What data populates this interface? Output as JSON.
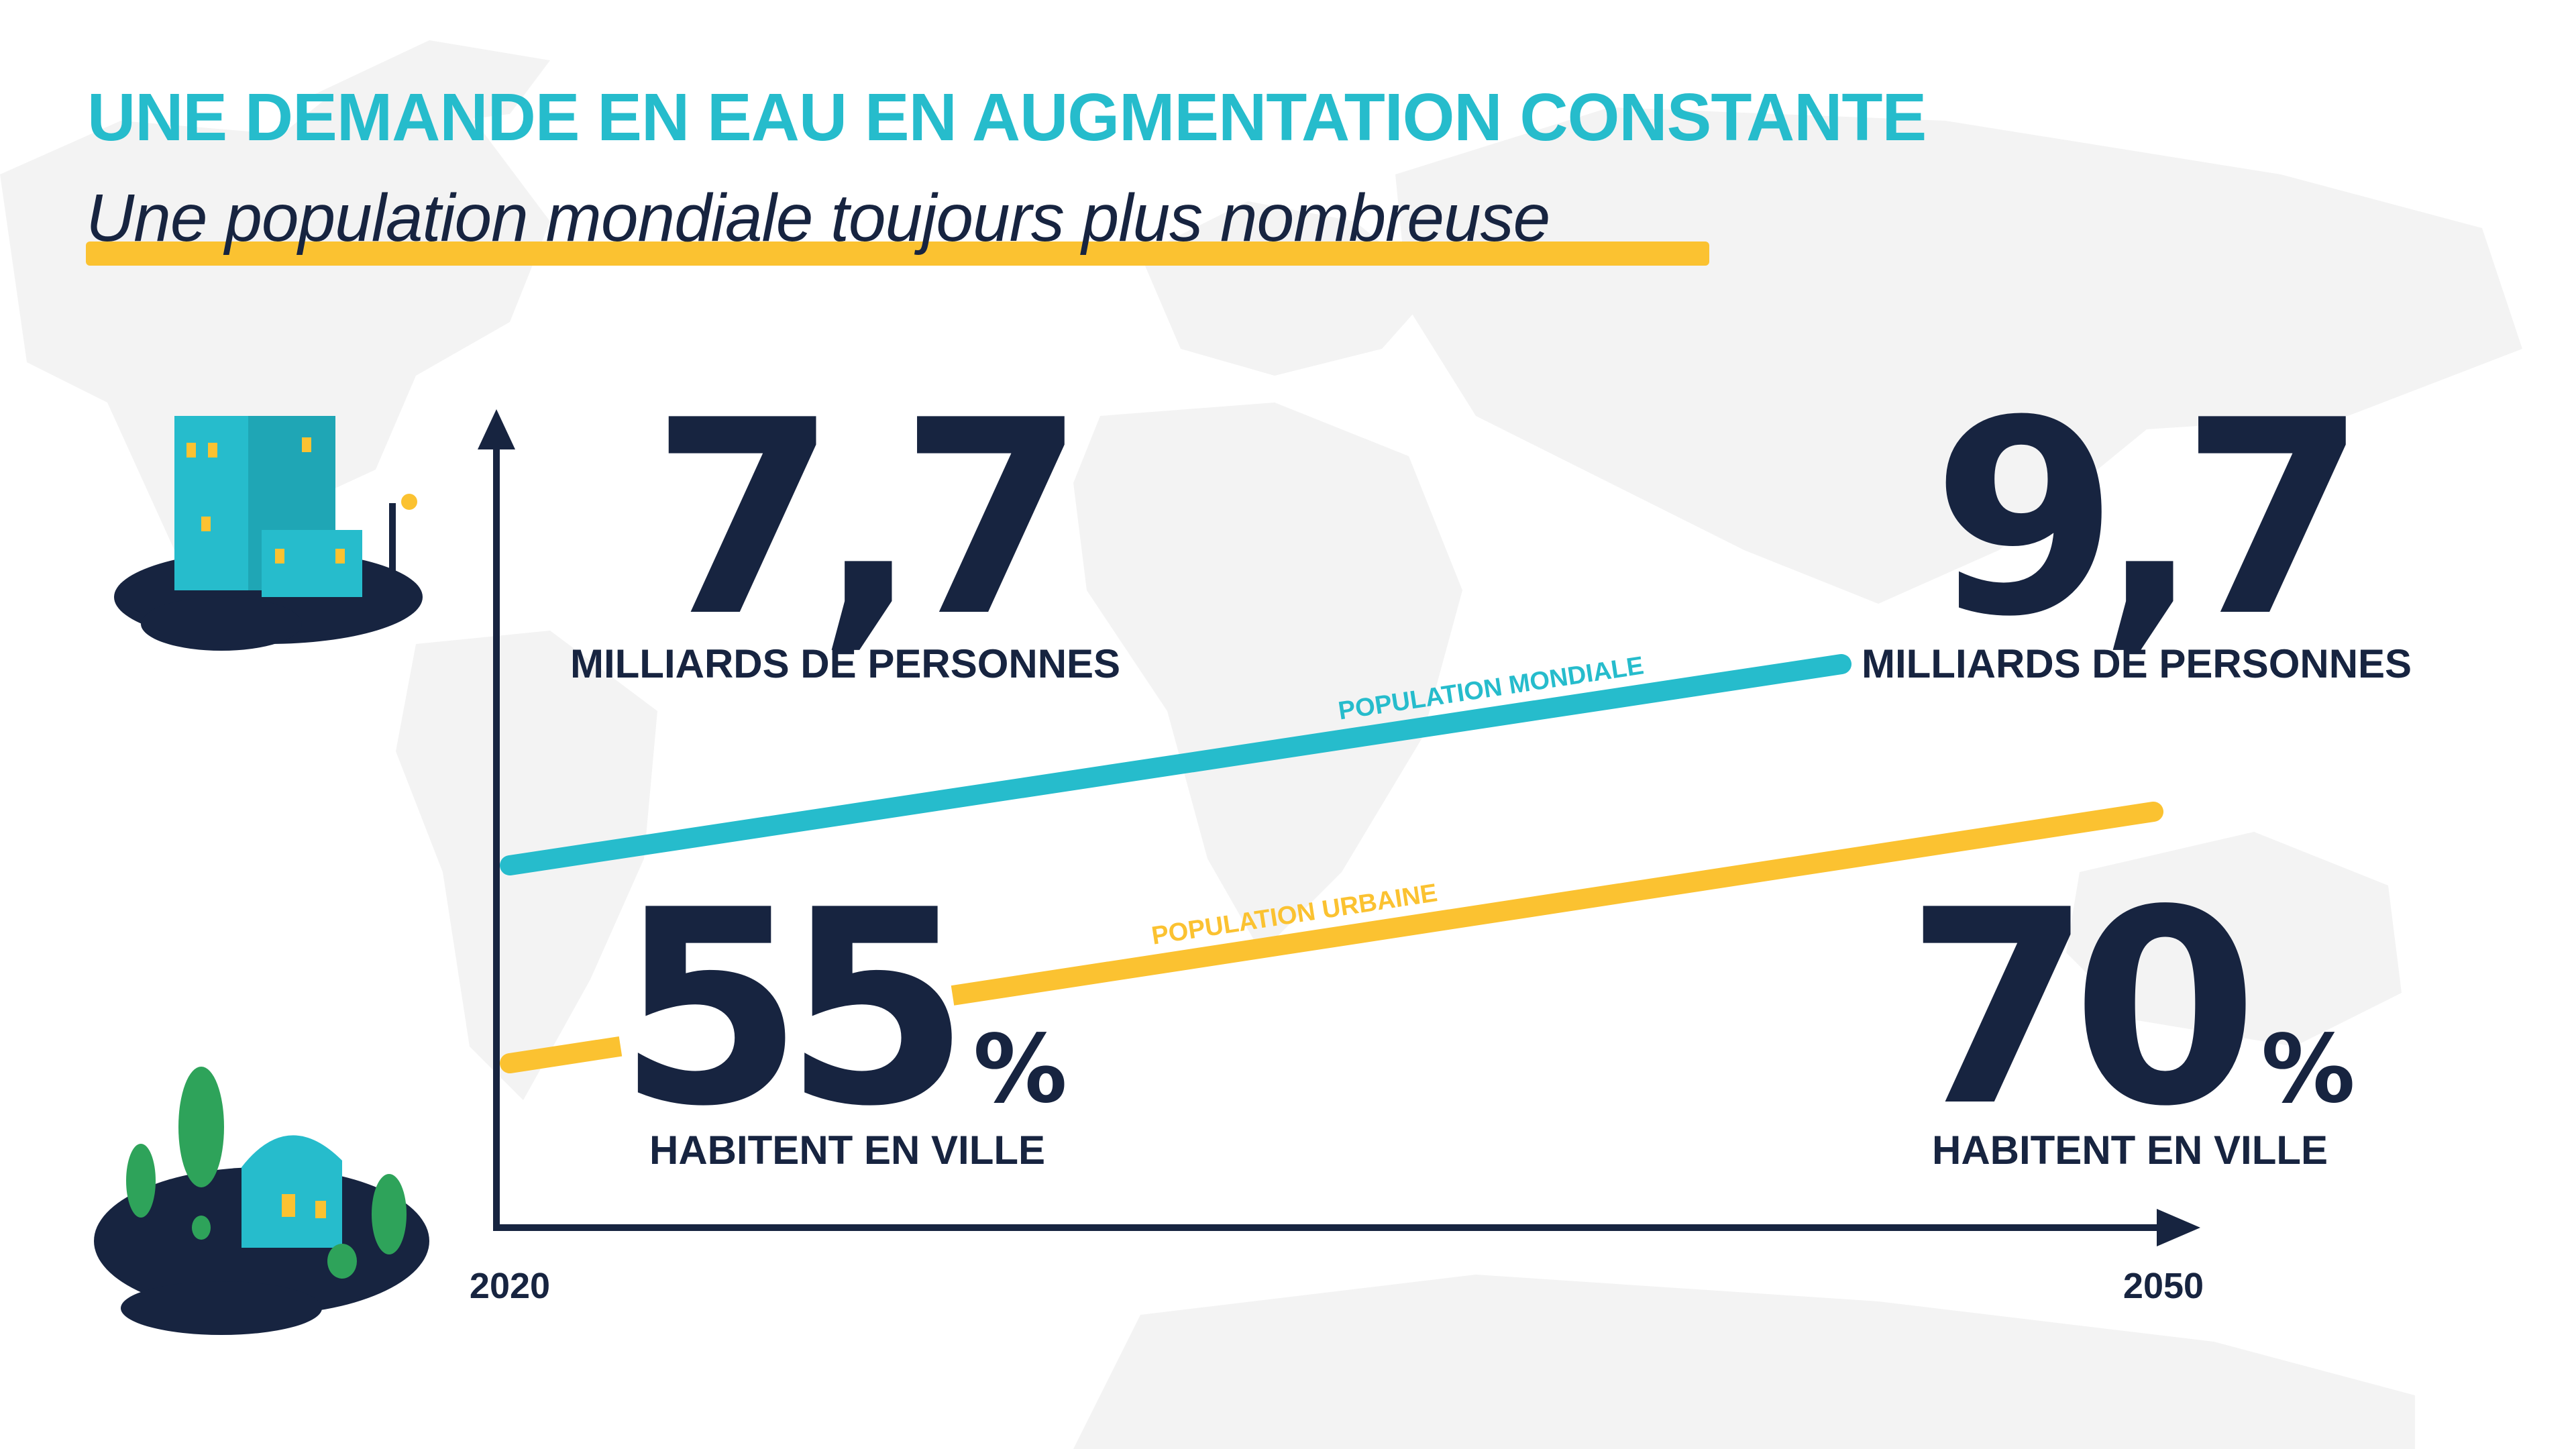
{
  "header": {
    "title": "UNE DEMANDE EN EAU EN AUGMENTATION CONSTANTE",
    "subtitle": "Une population mondiale toujours plus nombreuse"
  },
  "colors": {
    "title": "#26bccc",
    "highlight": "#fbc231",
    "world_line": "#26bccc",
    "urban_line": "#fbc231",
    "text": "#172440",
    "map": "#f2f2f2"
  },
  "icons": {
    "city": "city-buildings-icon",
    "village": "village-house-icon"
  },
  "stats": {
    "world_2020": {
      "value": "7,7",
      "label": "MILLIARDS DE PERSONNES"
    },
    "world_2050": {
      "value": "9,7",
      "label": "MILLIARDS DE PERSONNES"
    },
    "urban_2020": {
      "value": "55",
      "unit": "%",
      "label": "HABITENT EN VILLE"
    },
    "urban_2050": {
      "value": "70",
      "unit": "%",
      "label": "HABITENT EN VILLE"
    }
  },
  "chart_data": {
    "type": "line",
    "x": [
      2020,
      2050
    ],
    "x_tick_labels": [
      "2020",
      "2050"
    ],
    "series": [
      {
        "name": "POPULATION MONDIALE",
        "values": [
          7.7,
          9.7
        ],
        "unit": "milliards de personnes",
        "color": "#26bccc"
      },
      {
        "name": "POPULATION URBAINE",
        "values": [
          55,
          70
        ],
        "unit": "%",
        "color": "#fbc231"
      }
    ],
    "grid": false,
    "legend": "inline labels on lines"
  }
}
